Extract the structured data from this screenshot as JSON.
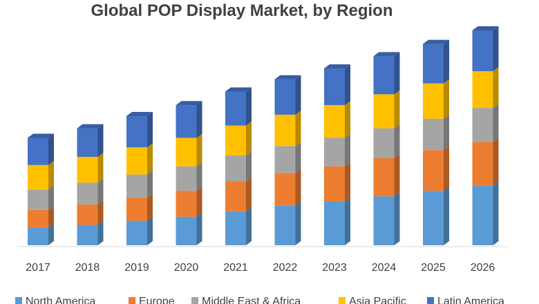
{
  "chart_data": {
    "type": "bar",
    "stacked": true,
    "title": "Global POP Display Market, by Region",
    "categories": [
      "2017",
      "2018",
      "2019",
      "2020",
      "2021",
      "2022",
      "2023",
      "2024",
      "2025",
      "2026"
    ],
    "series": [
      {
        "name": "North America",
        "color": "#5B9BD5",
        "values": [
          13,
          15,
          18,
          21,
          25,
          29,
          32,
          36,
          40,
          44
        ]
      },
      {
        "name": "Europe",
        "color": "#ED7D31",
        "values": [
          13,
          15,
          17,
          19,
          22,
          24,
          26,
          28,
          30,
          32
        ]
      },
      {
        "name": "Middle East & Africa",
        "color": "#A5A5A5",
        "values": [
          15,
          16,
          17,
          18,
          19,
          20,
          21,
          22,
          23,
          25
        ]
      },
      {
        "name": "Asia Pacific",
        "color": "#FFC000",
        "values": [
          18,
          19,
          20,
          21,
          22,
          23,
          24,
          25,
          26,
          27
        ]
      },
      {
        "name": "Latin America",
        "color": "#4472C4",
        "values": [
          20,
          21,
          23,
          24,
          25,
          26,
          27,
          28,
          29,
          30
        ]
      }
    ],
    "ylim": [
      0,
      160
    ],
    "grid": false,
    "legend_position": "bottom"
  }
}
